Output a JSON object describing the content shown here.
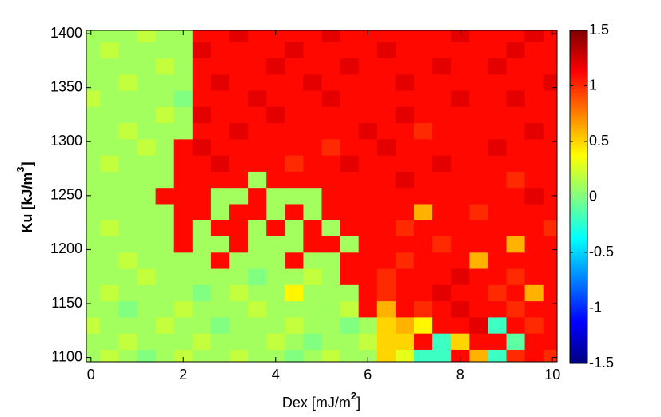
{
  "chart_data": {
    "type": "heatmap",
    "xlabel": {
      "text": "Dex [mJ/m",
      "superscript": "2",
      "close": "]"
    },
    "ylabel": {
      "text": "Ku [kJ/m",
      "superscript": "3",
      "close": "]"
    },
    "colormap": "jet",
    "clim": [
      -1.5,
      1.5
    ],
    "cticks": [
      -1.5,
      -1,
      -0.5,
      0,
      0.5,
      1,
      1.5
    ],
    "xlim": [
      -0.1,
      10.1
    ],
    "xticks": [
      0,
      2,
      4,
      6,
      8,
      10
    ],
    "ylim": [
      1096,
      1403
    ],
    "yticks": [
      1100,
      1150,
      1200,
      1250,
      1300,
      1350,
      1400
    ],
    "x": [
      0,
      0.4,
      0.8,
      1.2,
      1.6,
      2,
      2.4,
      2.8,
      3.2,
      3.6,
      4,
      4.4,
      4.8,
      5.2,
      5.6,
      6,
      6.4,
      6.8,
      7.2,
      7.6,
      8,
      8.4,
      8.8,
      9.2,
      9.6,
      10
    ],
    "y": [
      1100,
      1115,
      1130,
      1145,
      1160,
      1175,
      1190,
      1205,
      1220,
      1235,
      1250,
      1265,
      1280,
      1295,
      1310,
      1325,
      1340,
      1355,
      1370,
      1385,
      1400
    ],
    "z": [
      [
        0.1,
        0.2,
        0.1,
        0.0,
        0.1,
        0.2,
        0.1,
        0.1,
        0.2,
        0.1,
        0.1,
        0.0,
        0.1,
        0.2,
        0.1,
        0.1,
        0.5,
        0.3,
        -0.2,
        -0.2,
        1.1,
        0.6,
        -0.2,
        1.0,
        1.1,
        1.0
      ],
      [
        0.1,
        0.1,
        0.2,
        0.1,
        0.1,
        0.1,
        0.2,
        0.1,
        0.1,
        0.1,
        0.2,
        0.1,
        0.0,
        0.1,
        0.1,
        0.2,
        0.5,
        0.5,
        1.1,
        -0.2,
        0.5,
        1.1,
        1.1,
        -0.1,
        1.1,
        1.1
      ],
      [
        0.2,
        0.1,
        0.1,
        0.1,
        0.2,
        0.1,
        0.1,
        0.0,
        0.1,
        0.1,
        0.1,
        0.2,
        0.1,
        0.1,
        0.0,
        0.1,
        0.5,
        0.6,
        0.4,
        1.1,
        1.1,
        1.2,
        -0.2,
        1.1,
        1.0,
        1.1
      ],
      [
        0.1,
        0.1,
        0.0,
        0.1,
        0.1,
        0.2,
        0.1,
        0.1,
        0.1,
        0.2,
        0.1,
        0.1,
        0.1,
        0.1,
        0.2,
        1.1,
        0.6,
        1.1,
        1.0,
        1.1,
        1.2,
        1.1,
        1.1,
        1.0,
        1.1,
        1.1
      ],
      [
        0.1,
        0.2,
        0.1,
        0.1,
        0.1,
        0.1,
        0.0,
        0.1,
        0.2,
        0.1,
        0.1,
        0.4,
        0.1,
        0.1,
        0.1,
        1.1,
        1.0,
        1.1,
        1.1,
        1.2,
        1.1,
        1.1,
        1.0,
        1.1,
        0.6,
        1.1
      ],
      [
        0.1,
        0.1,
        0.1,
        0.2,
        0.1,
        0.1,
        0.1,
        0.1,
        0.1,
        0.0,
        0.1,
        0.1,
        0.2,
        0.1,
        1.1,
        1.1,
        1.0,
        1.1,
        1.1,
        1.1,
        1.2,
        1.1,
        1.1,
        1.0,
        1.1,
        1.1
      ],
      [
        0.1,
        0.1,
        0.2,
        0.1,
        0.1,
        0.1,
        0.1,
        1.1,
        0.1,
        0.1,
        0.1,
        1.1,
        0.1,
        0.1,
        1.1,
        1.1,
        1.1,
        1.0,
        1.1,
        1.1,
        1.1,
        0.6,
        1.1,
        1.1,
        1.1,
        1.1
      ],
      [
        0.1,
        0.1,
        0.1,
        0.1,
        0.1,
        1.1,
        0.1,
        0.1,
        1.1,
        0.1,
        0.1,
        0.1,
        1.1,
        1.1,
        0.1,
        1.1,
        1.1,
        1.1,
        1.1,
        1.0,
        1.1,
        1.1,
        1.1,
        0.6,
        1.1,
        1.1
      ],
      [
        0.1,
        0.2,
        0.1,
        0.1,
        0.1,
        1.1,
        0.1,
        1.1,
        1.1,
        0.1,
        1.1,
        0.1,
        1.1,
        0.1,
        1.1,
        1.1,
        1.1,
        1.0,
        1.1,
        1.1,
        1.1,
        1.1,
        1.1,
        1.1,
        1.1,
        1.0
      ],
      [
        0.1,
        0.1,
        0.1,
        0.1,
        0.1,
        1.1,
        1.1,
        0.1,
        1.1,
        1.1,
        0.1,
        1.1,
        0.1,
        1.1,
        1.1,
        1.1,
        1.1,
        1.1,
        0.6,
        1.1,
        1.1,
        1.0,
        1.1,
        1.1,
        1.1,
        1.1
      ],
      [
        0.1,
        0.1,
        0.1,
        0.1,
        1.1,
        1.1,
        1.1,
        0.1,
        0.1,
        1.1,
        0.1,
        0.1,
        0.1,
        1.1,
        1.1,
        1.1,
        1.1,
        1.1,
        1.1,
        1.1,
        1.1,
        1.1,
        1.1,
        1.1,
        1.2,
        1.1
      ],
      [
        0.1,
        0.1,
        0.1,
        0.1,
        0.1,
        1.1,
        1.1,
        1.1,
        1.1,
        0.1,
        1.1,
        1.1,
        1.1,
        1.1,
        1.1,
        1.1,
        1.1,
        1.2,
        1.1,
        1.1,
        1.1,
        1.1,
        1.1,
        1.0,
        1.1,
        1.1
      ],
      [
        0.1,
        0.2,
        0.1,
        0.1,
        0.1,
        1.1,
        1.1,
        1.2,
        1.1,
        1.1,
        1.1,
        1.0,
        1.1,
        1.1,
        1.2,
        1.1,
        1.1,
        1.1,
        1.1,
        1.2,
        1.1,
        1.1,
        1.1,
        1.1,
        1.1,
        1.1
      ],
      [
        0.1,
        0.1,
        0.1,
        0.2,
        0.1,
        1.1,
        1.2,
        1.1,
        1.1,
        1.1,
        1.1,
        1.1,
        1.1,
        1.0,
        1.1,
        1.1,
        1.2,
        1.1,
        1.1,
        1.1,
        1.1,
        1.1,
        1.2,
        1.1,
        1.1,
        1.1
      ],
      [
        0.1,
        0.1,
        0.2,
        0.1,
        0.1,
        0.1,
        1.1,
        1.1,
        1.2,
        1.1,
        1.1,
        1.1,
        1.1,
        1.1,
        1.1,
        1.2,
        1.1,
        1.1,
        1.0,
        1.1,
        1.1,
        1.1,
        1.1,
        1.1,
        1.2,
        1.1
      ],
      [
        0.1,
        0.1,
        0.1,
        0.1,
        0.2,
        0.1,
        1.2,
        1.1,
        1.1,
        1.1,
        1.2,
        1.1,
        1.1,
        1.1,
        1.1,
        1.1,
        1.1,
        1.2,
        1.1,
        1.1,
        1.1,
        1.1,
        1.1,
        1.1,
        1.1,
        1.1
      ],
      [
        0.2,
        0.1,
        0.1,
        0.1,
        0.1,
        0.0,
        1.1,
        1.1,
        1.1,
        1.2,
        1.1,
        1.1,
        1.1,
        1.2,
        1.1,
        1.1,
        1.1,
        1.1,
        1.1,
        1.1,
        1.2,
        1.1,
        1.1,
        1.2,
        1.1,
        1.1
      ],
      [
        0.1,
        0.1,
        0.2,
        0.1,
        0.1,
        0.1,
        1.1,
        1.2,
        1.1,
        1.1,
        1.1,
        1.1,
        1.2,
        1.1,
        1.1,
        1.1,
        1.1,
        1.2,
        1.1,
        1.1,
        1.1,
        1.1,
        1.1,
        1.1,
        1.1,
        1.2
      ],
      [
        0.1,
        0.1,
        0.1,
        0.1,
        0.2,
        0.1,
        1.1,
        1.1,
        1.1,
        1.1,
        1.2,
        1.1,
        1.1,
        1.1,
        1.2,
        1.1,
        1.1,
        1.1,
        1.1,
        1.2,
        1.1,
        1.1,
        1.2,
        1.1,
        1.1,
        1.1
      ],
      [
        0.1,
        0.2,
        0.1,
        0.1,
        0.1,
        0.1,
        1.2,
        1.1,
        1.1,
        1.1,
        1.1,
        1.2,
        1.1,
        1.1,
        1.1,
        1.1,
        1.2,
        1.1,
        1.1,
        1.1,
        1.1,
        1.1,
        1.1,
        1.2,
        1.1,
        1.1
      ],
      [
        0.1,
        0.1,
        0.1,
        0.2,
        0.1,
        0.1,
        1.1,
        1.1,
        1.2,
        1.1,
        1.1,
        1.1,
        1.1,
        1.2,
        1.1,
        1.1,
        1.1,
        1.1,
        1.1,
        1.1,
        1.2,
        1.1,
        1.1,
        1.1,
        1.2,
        1.1
      ]
    ]
  }
}
